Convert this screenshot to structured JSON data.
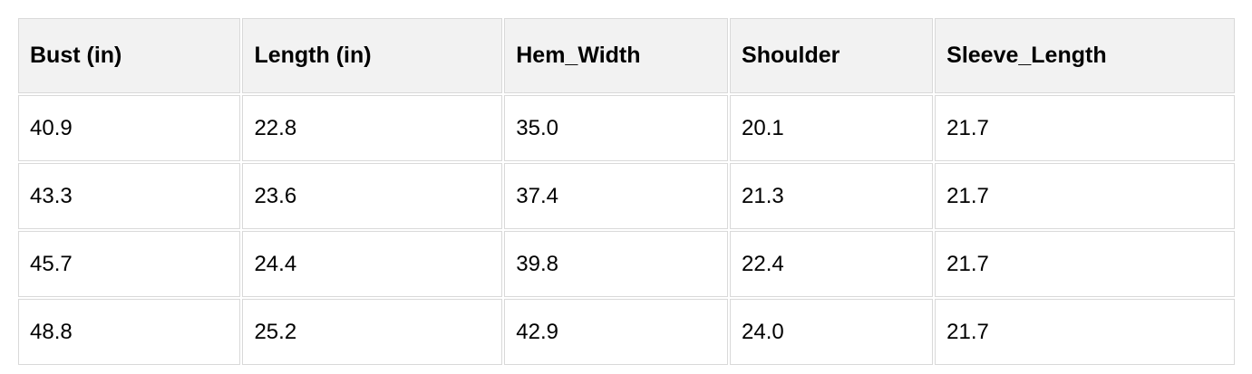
{
  "chart_data": {
    "type": "table",
    "columns": [
      "Bust (in)",
      "Length (in)",
      "Hem_Width",
      "Shoulder",
      "Sleeve_Length"
    ],
    "rows": [
      [
        "40.9",
        "22.8",
        "35.0",
        "20.1",
        "21.7"
      ],
      [
        "43.3",
        "23.6",
        "37.4",
        "21.3",
        "21.7"
      ],
      [
        "45.7",
        "24.4",
        "39.8",
        "22.4",
        "21.7"
      ],
      [
        "48.8",
        "25.2",
        "42.9",
        "24.0",
        "21.7"
      ]
    ]
  },
  "colors": {
    "page_background": "#ffffff",
    "header_background": "#f2f2f2",
    "cell_border": "#d9d9d9",
    "text": "#000000"
  }
}
